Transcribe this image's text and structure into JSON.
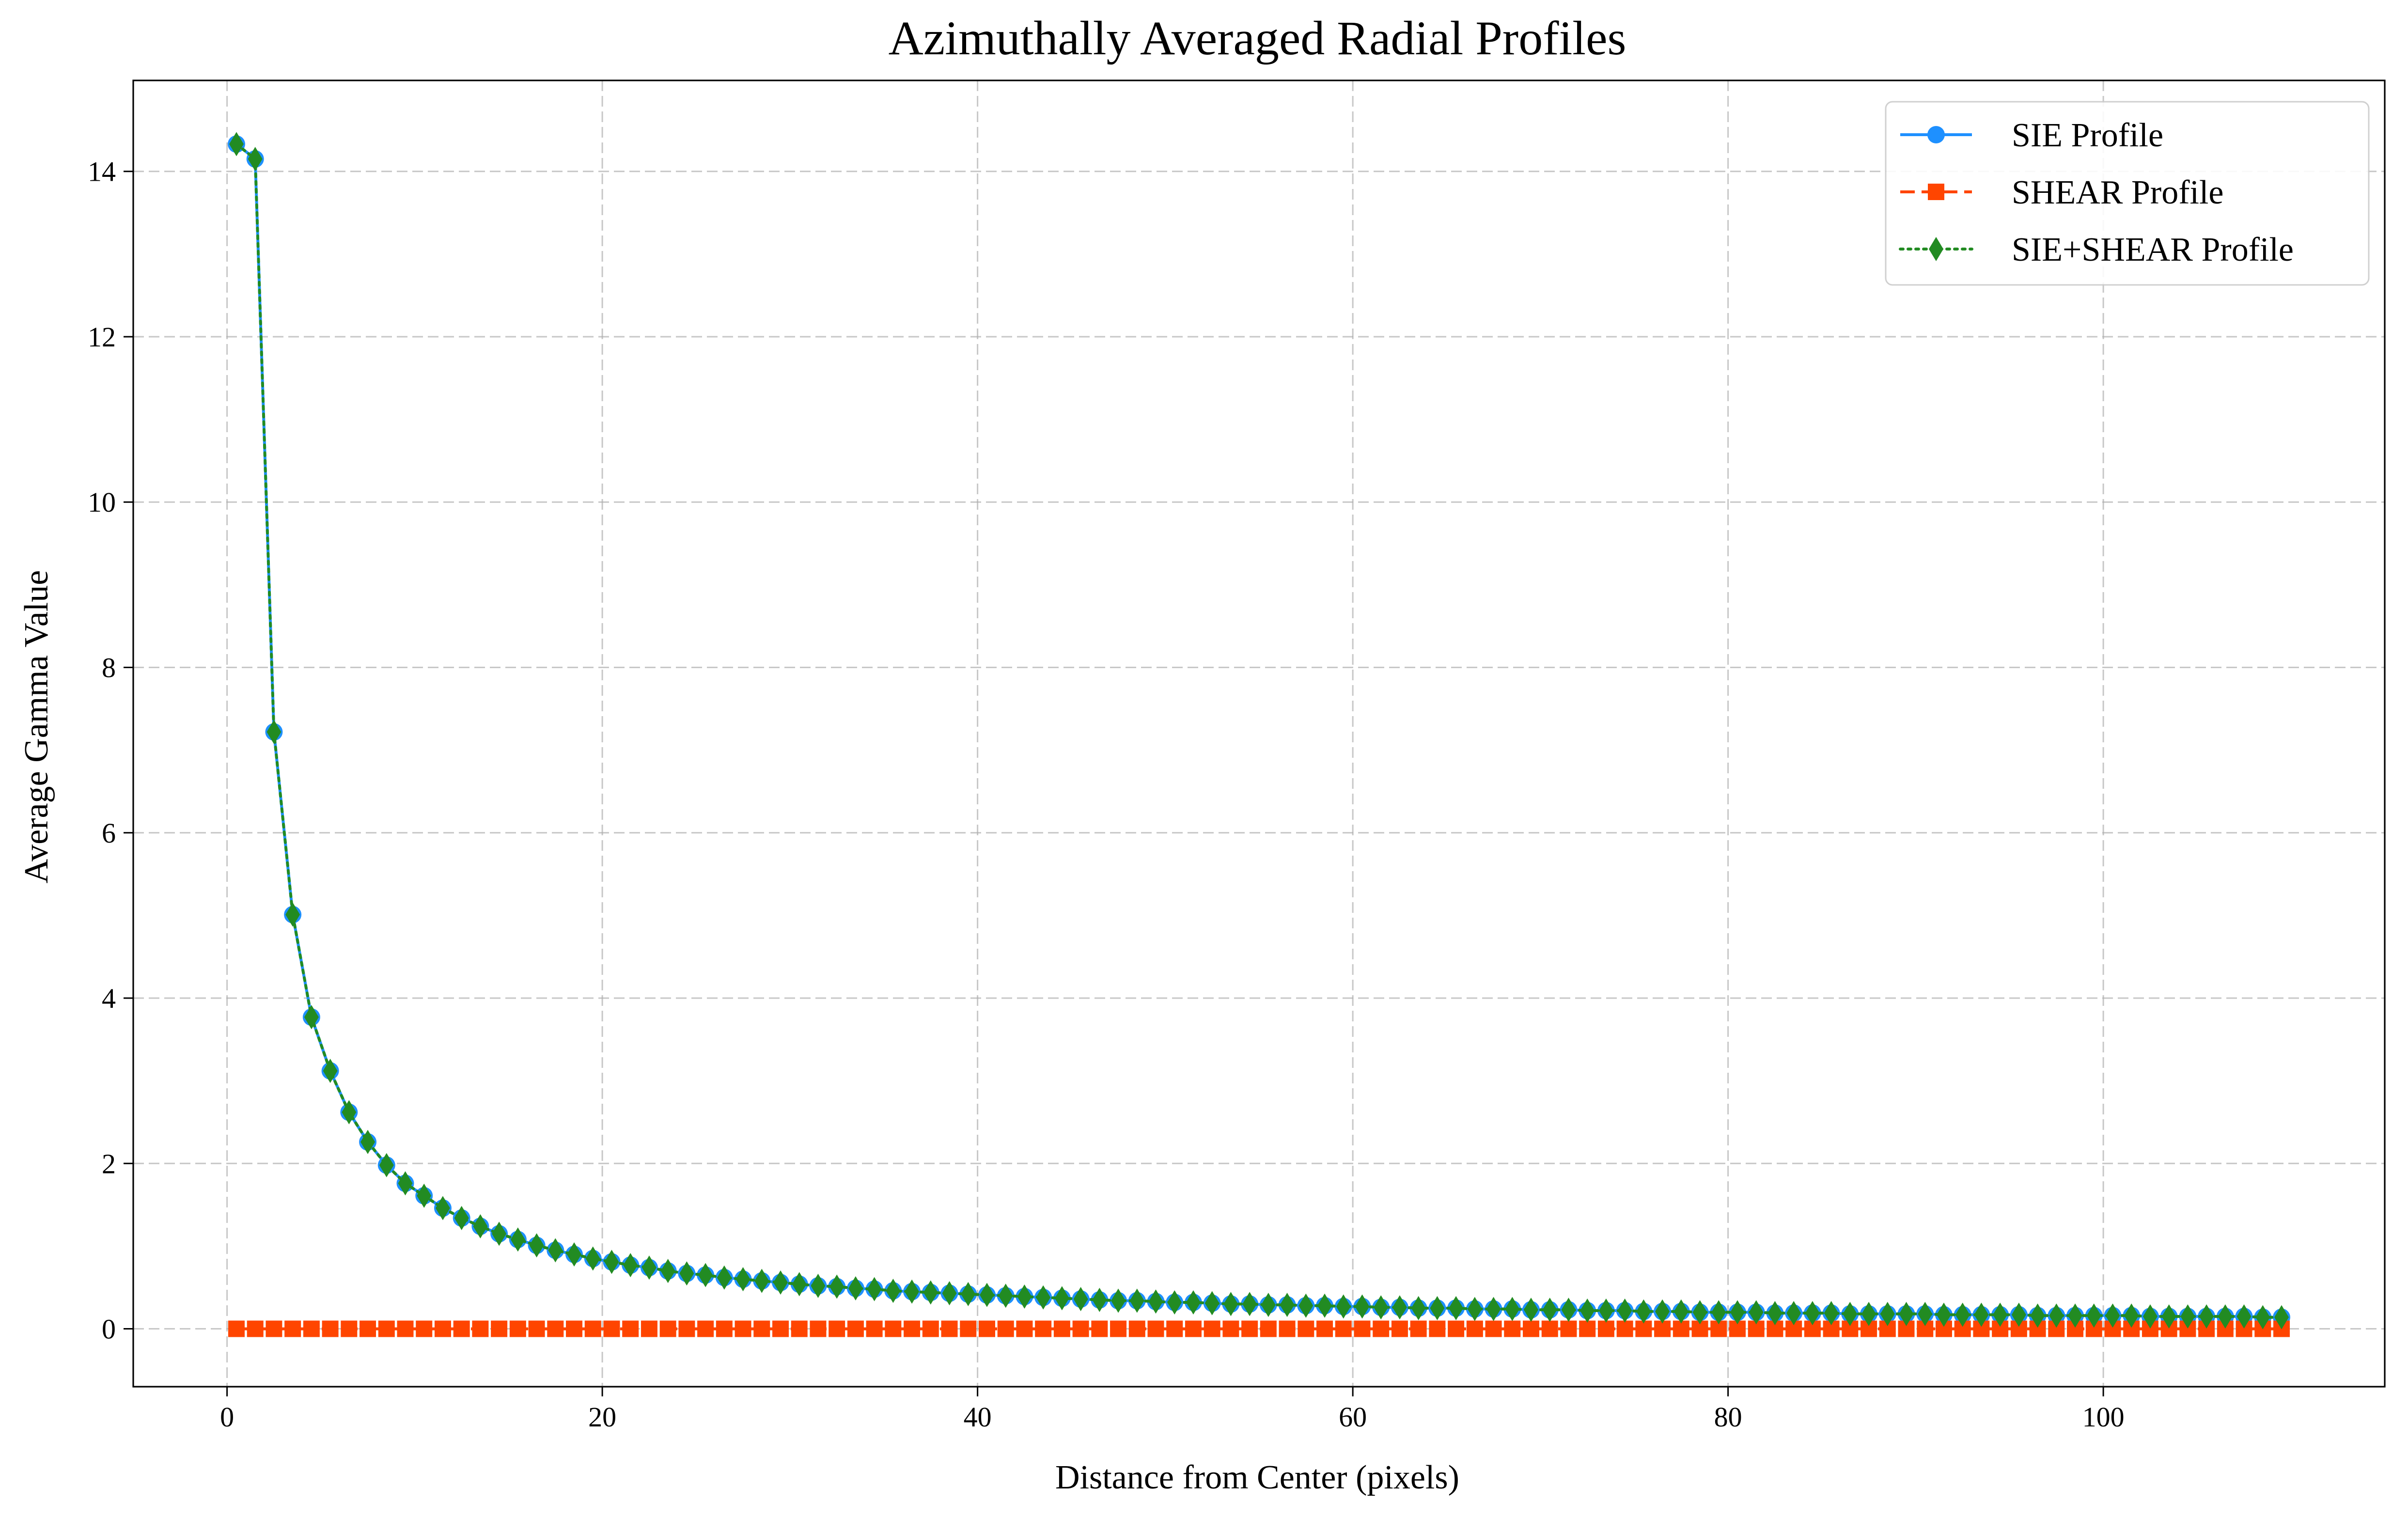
{
  "chart_data": {
    "type": "line",
    "title": "Azimuthally Averaged Radial Profiles",
    "xlabel": "Distance from Center (pixels)",
    "ylabel": "Average Gamma Value",
    "xlim": [
      -5,
      115
    ],
    "ylim": [
      -0.7,
      15.1
    ],
    "xticks": [
      0,
      20,
      40,
      60,
      80,
      100
    ],
    "yticks": [
      0,
      2,
      4,
      6,
      8,
      10,
      12,
      14
    ],
    "grid": true,
    "legend_position": "top-right",
    "x": [
      0.5,
      1.5,
      2.5,
      3.5,
      4.5,
      5.5,
      6.5,
      7.5,
      8.5,
      9.5,
      10.5,
      11.5,
      12.5,
      13.5,
      14.5,
      15.5,
      16.5,
      17.5,
      18.5,
      19.5,
      20.5,
      21.5,
      22.5,
      23.5,
      24.5,
      25.5,
      26.5,
      27.5,
      28.5,
      29.5,
      30.5,
      31.5,
      32.5,
      33.5,
      34.5,
      35.5,
      36.5,
      37.5,
      38.5,
      39.5,
      40.5,
      41.5,
      42.5,
      43.5,
      44.5,
      45.5,
      46.5,
      47.5,
      48.5,
      49.5,
      50.5,
      51.5,
      52.5,
      53.5,
      54.5,
      55.5,
      56.5,
      57.5,
      58.5,
      59.5,
      60.5,
      61.5,
      62.5,
      63.5,
      64.5,
      65.5,
      66.5,
      67.5,
      68.5,
      69.5,
      70.5,
      71.5,
      72.5,
      73.5,
      74.5,
      75.5,
      76.5,
      77.5,
      78.5,
      79.5,
      80.5,
      81.5,
      82.5,
      83.5,
      84.5,
      85.5,
      86.5,
      87.5,
      88.5,
      89.5,
      90.5,
      91.5,
      92.5,
      93.5,
      94.5,
      95.5,
      96.5,
      97.5,
      98.5,
      99.5,
      100.5,
      101.5,
      102.5,
      103.5,
      104.5,
      105.5,
      106.5,
      107.5,
      108.5,
      109.5
    ],
    "series": [
      {
        "name": "SIE Profile",
        "color": "#1e90ff",
        "line_style": "solid",
        "marker": "circle",
        "values": [
          14.33,
          14.15,
          7.22,
          5.01,
          3.77,
          3.12,
          2.62,
          2.26,
          1.98,
          1.76,
          1.61,
          1.46,
          1.34,
          1.24,
          1.15,
          1.08,
          1.01,
          0.95,
          0.9,
          0.85,
          0.81,
          0.77,
          0.74,
          0.7,
          0.67,
          0.65,
          0.62,
          0.6,
          0.58,
          0.56,
          0.54,
          0.52,
          0.51,
          0.49,
          0.48,
          0.46,
          0.45,
          0.44,
          0.43,
          0.42,
          0.41,
          0.4,
          0.39,
          0.38,
          0.37,
          0.36,
          0.35,
          0.34,
          0.34,
          0.33,
          0.32,
          0.32,
          0.31,
          0.3,
          0.3,
          0.29,
          0.29,
          0.28,
          0.28,
          0.27,
          0.27,
          0.26,
          0.26,
          0.25,
          0.25,
          0.25,
          0.24,
          0.24,
          0.24,
          0.23,
          0.23,
          0.23,
          0.22,
          0.22,
          0.22,
          0.21,
          0.21,
          0.21,
          0.2,
          0.2,
          0.2,
          0.2,
          0.19,
          0.19,
          0.19,
          0.19,
          0.18,
          0.18,
          0.18,
          0.18,
          0.18,
          0.17,
          0.17,
          0.17,
          0.17,
          0.17,
          0.16,
          0.16,
          0.16,
          0.16,
          0.16,
          0.16,
          0.15,
          0.15,
          0.15,
          0.15,
          0.15,
          0.15,
          0.14,
          0.14
        ]
      },
      {
        "name": "SHEAR Profile",
        "color": "#ff4500",
        "line_style": "dashed",
        "marker": "square",
        "values": [
          0,
          0,
          0,
          0,
          0,
          0,
          0,
          0,
          0,
          0,
          0,
          0,
          0,
          0,
          0,
          0,
          0,
          0,
          0,
          0,
          0,
          0,
          0,
          0,
          0,
          0,
          0,
          0,
          0,
          0,
          0,
          0,
          0,
          0,
          0,
          0,
          0,
          0,
          0,
          0,
          0,
          0,
          0,
          0,
          0,
          0,
          0,
          0,
          0,
          0,
          0,
          0,
          0,
          0,
          0,
          0,
          0,
          0,
          0,
          0,
          0,
          0,
          0,
          0,
          0,
          0,
          0,
          0,
          0,
          0,
          0,
          0,
          0,
          0,
          0,
          0,
          0,
          0,
          0,
          0,
          0,
          0,
          0,
          0,
          0,
          0,
          0,
          0,
          0,
          0,
          0,
          0,
          0,
          0,
          0,
          0,
          0,
          0,
          0,
          0,
          0,
          0,
          0,
          0,
          0,
          0,
          0,
          0,
          0,
          0
        ]
      },
      {
        "name": "SIE+SHEAR Profile",
        "color": "#228b22",
        "line_style": "dotted",
        "marker": "diamond",
        "values": [
          14.33,
          14.15,
          7.22,
          5.01,
          3.77,
          3.12,
          2.62,
          2.26,
          1.98,
          1.76,
          1.61,
          1.46,
          1.34,
          1.24,
          1.15,
          1.08,
          1.01,
          0.95,
          0.9,
          0.85,
          0.81,
          0.77,
          0.74,
          0.7,
          0.67,
          0.65,
          0.62,
          0.6,
          0.58,
          0.56,
          0.54,
          0.52,
          0.51,
          0.49,
          0.48,
          0.46,
          0.45,
          0.44,
          0.43,
          0.42,
          0.41,
          0.4,
          0.39,
          0.38,
          0.37,
          0.36,
          0.35,
          0.34,
          0.34,
          0.33,
          0.32,
          0.32,
          0.31,
          0.3,
          0.3,
          0.29,
          0.29,
          0.28,
          0.28,
          0.27,
          0.27,
          0.26,
          0.26,
          0.25,
          0.25,
          0.25,
          0.24,
          0.24,
          0.24,
          0.23,
          0.23,
          0.23,
          0.22,
          0.22,
          0.22,
          0.21,
          0.21,
          0.21,
          0.2,
          0.2,
          0.2,
          0.2,
          0.19,
          0.19,
          0.19,
          0.19,
          0.18,
          0.18,
          0.18,
          0.18,
          0.18,
          0.17,
          0.17,
          0.17,
          0.17,
          0.17,
          0.16,
          0.16,
          0.16,
          0.16,
          0.16,
          0.16,
          0.15,
          0.15,
          0.15,
          0.15,
          0.15,
          0.15,
          0.14,
          0.14
        ]
      }
    ]
  }
}
